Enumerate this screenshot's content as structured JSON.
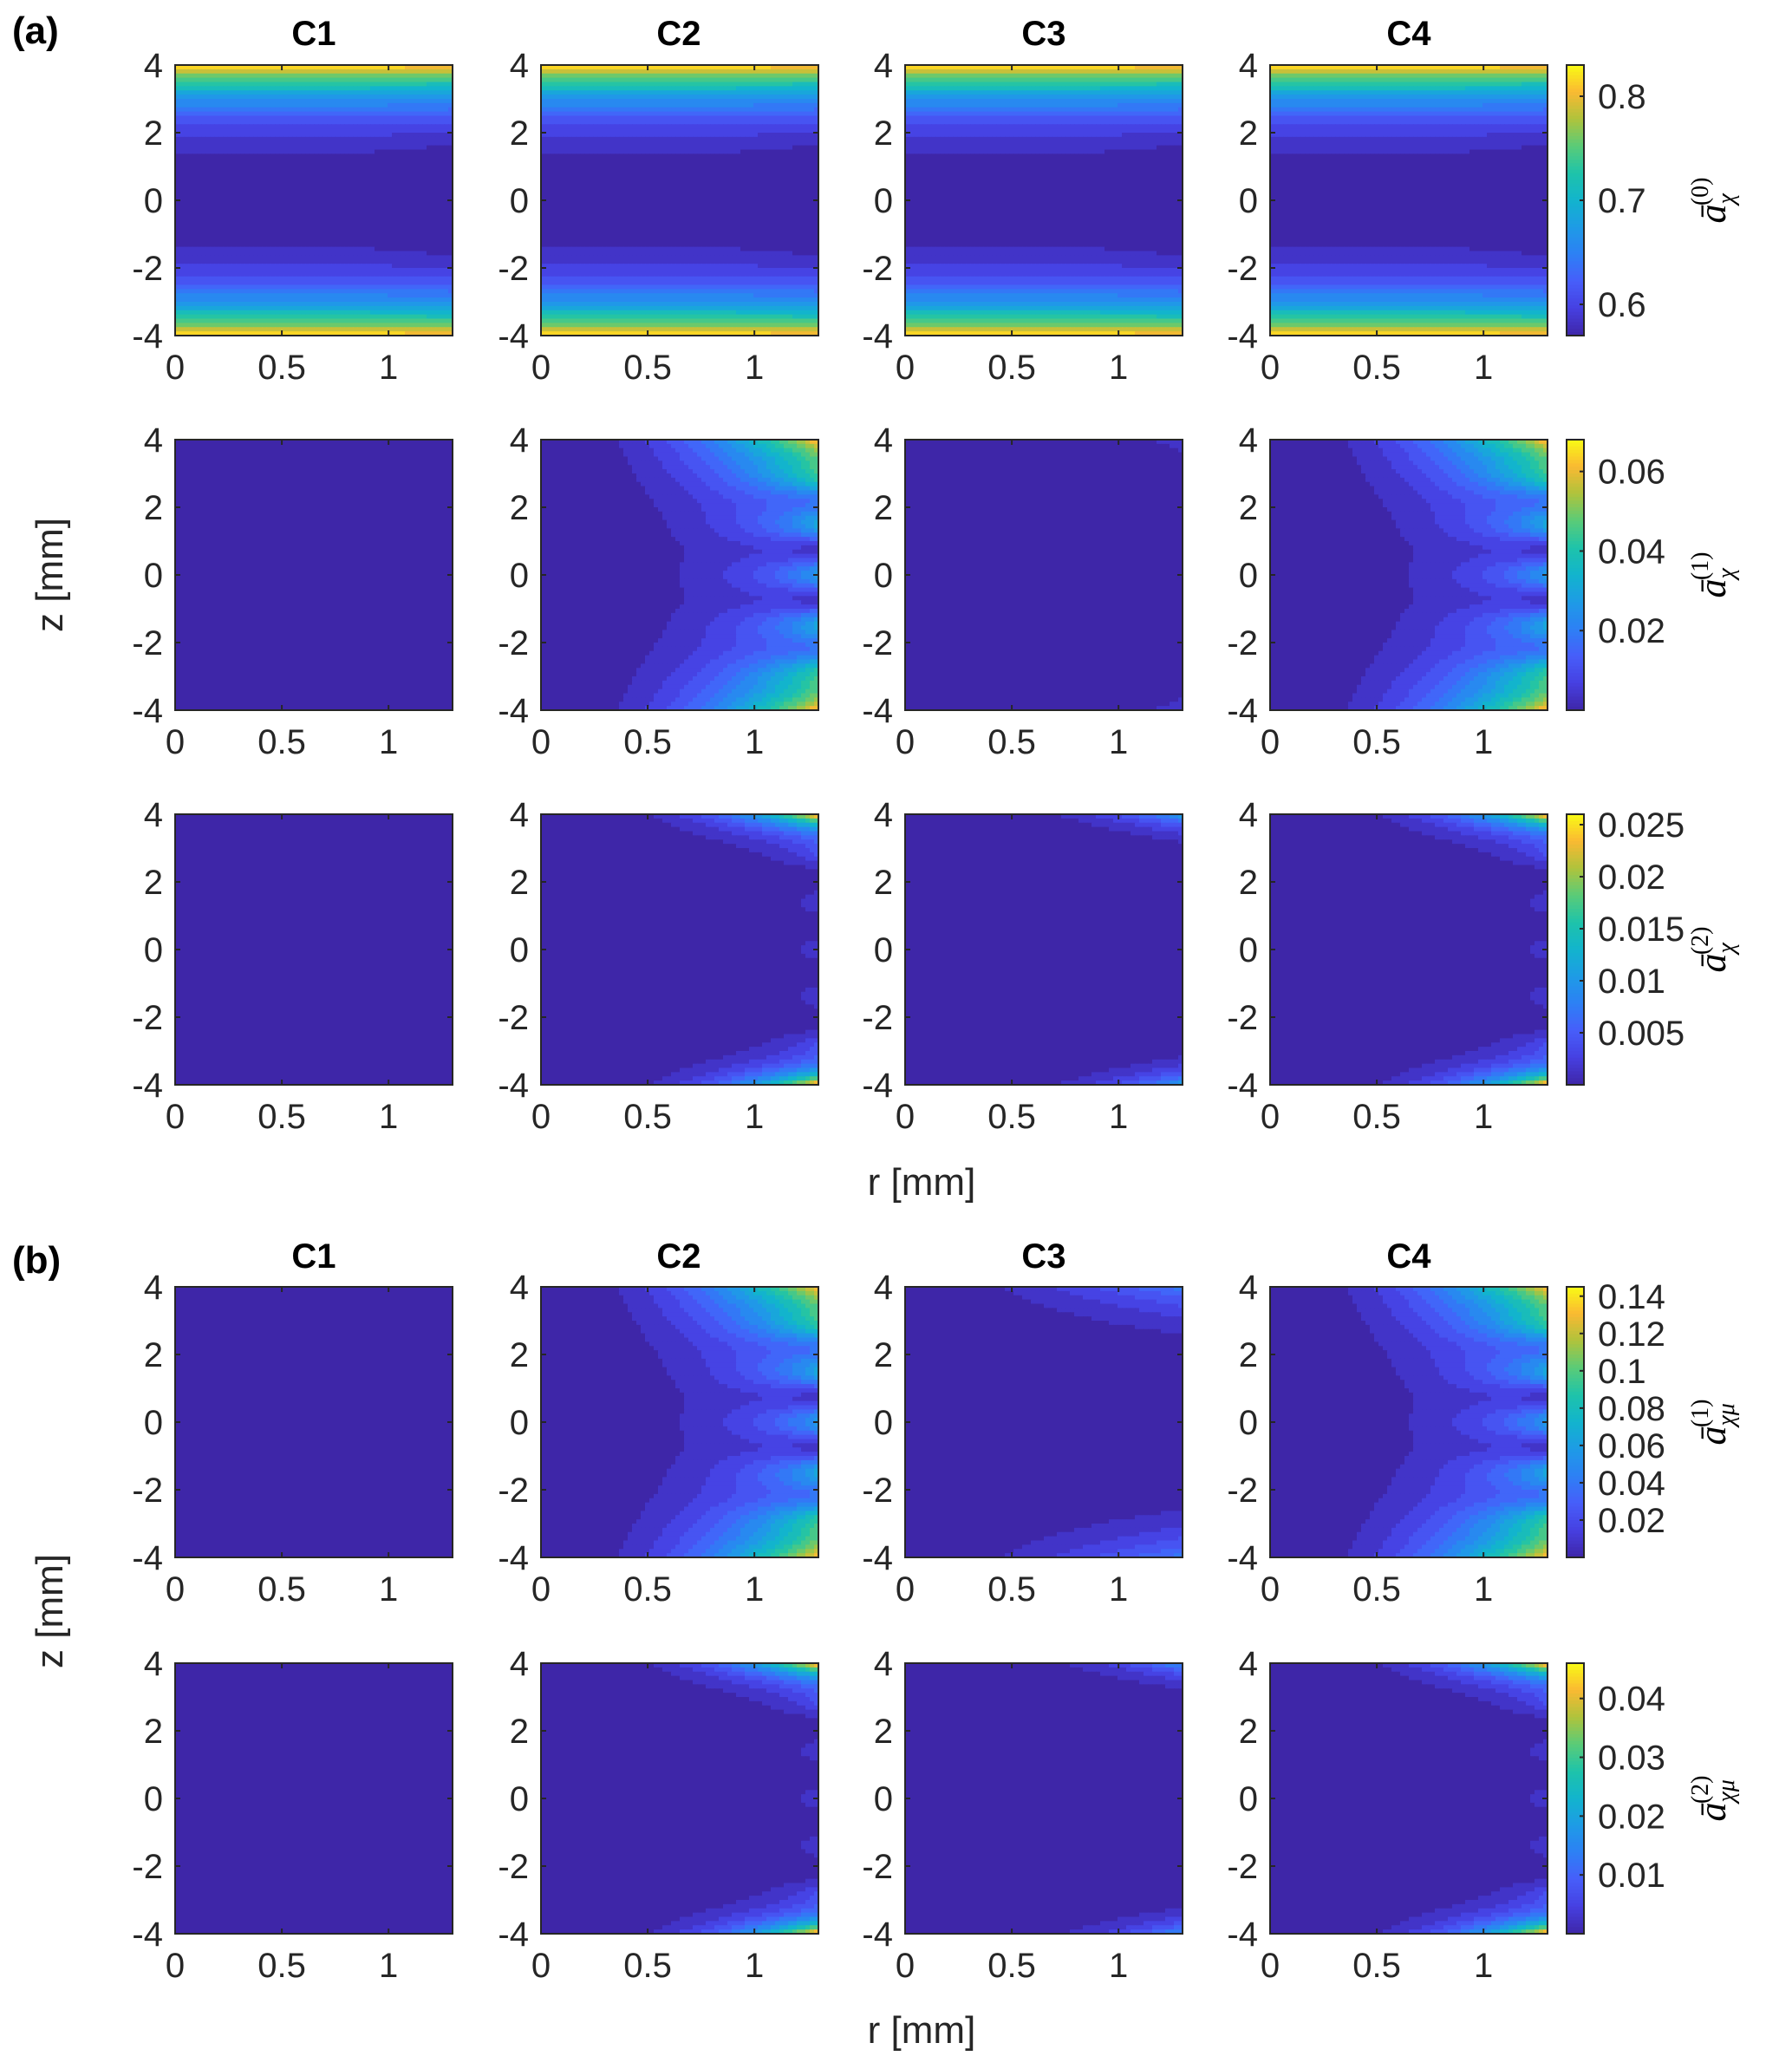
{
  "figure": {
    "section_labels": [
      "(a)",
      "(b)"
    ],
    "column_titles": [
      "C1",
      "C2",
      "C3",
      "C4"
    ],
    "ylabel": "z [mm]",
    "xlabel": "r [mm]",
    "x_tick_labels": [
      "0",
      "0.5",
      "1"
    ],
    "y_tick_labels": [
      "4",
      "2",
      "0",
      "-2",
      "-4"
    ]
  },
  "colors": {
    "parula_low": "#3e26a8",
    "parula_mid": "#12beb9",
    "parula_high": "#f9fb15",
    "axis": "#262626"
  },
  "chart_data": [
    {
      "type": "heatmap",
      "section": "(a)",
      "quantity": "a-bar chi (0)",
      "colorbar_label": {
        "base": "ā",
        "sup": "(0)",
        "sub": "χ"
      },
      "colorbar_ticks": [
        0.6,
        0.7,
        0.8
      ],
      "colorbar_tick_labels": [
        "0.6",
        "0.7",
        "0.8"
      ],
      "clim": [
        0.57,
        0.83
      ],
      "xlim": [
        0,
        1.3
      ],
      "ylim": [
        -4,
        4
      ],
      "panels": [
        {
          "title": "C1",
          "pattern": "edge-bands",
          "max": 0.83
        },
        {
          "title": "C2",
          "pattern": "edge-bands",
          "max": 0.83
        },
        {
          "title": "C3",
          "pattern": "edge-bands",
          "max": 0.83
        },
        {
          "title": "C4",
          "pattern": "edge-bands",
          "max": 0.83
        }
      ]
    },
    {
      "type": "heatmap",
      "section": "(a)",
      "quantity": "a-bar chi (1)",
      "colorbar_label": {
        "base": "ā",
        "sup": "(1)",
        "sub": "χ"
      },
      "colorbar_ticks": [
        0.02,
        0.04,
        0.06
      ],
      "colorbar_tick_labels": [
        "0.02",
        "0.04",
        "0.06"
      ],
      "clim": [
        0.0,
        0.068
      ],
      "xlim": [
        0,
        1.3
      ],
      "ylim": [
        -4,
        4
      ],
      "panels": [
        {
          "title": "C1",
          "pattern": "flat",
          "max": 0.0
        },
        {
          "title": "C2",
          "pattern": "corner-lobes-wide",
          "max": 0.066
        },
        {
          "title": "C3",
          "pattern": "corner-lobes-weak",
          "max": 0.006
        },
        {
          "title": "C4",
          "pattern": "corner-lobes-wide",
          "max": 0.066
        }
      ]
    },
    {
      "type": "heatmap",
      "section": "(a)",
      "quantity": "a-bar chi (2)",
      "colorbar_label": {
        "base": "ā",
        "sup": "(2)",
        "sub": "χ"
      },
      "colorbar_ticks": [
        0.005,
        0.01,
        0.015,
        0.02,
        0.025
      ],
      "colorbar_tick_labels": [
        "0.005",
        "0.01",
        "0.015",
        "0.02",
        "0.025"
      ],
      "clim": [
        0.0,
        0.026
      ],
      "xlim": [
        0,
        1.3
      ],
      "ylim": [
        -4,
        4
      ],
      "panels": [
        {
          "title": "C1",
          "pattern": "flat",
          "max": 0.0
        },
        {
          "title": "C2",
          "pattern": "corner-lobes-narrow",
          "max": 0.025
        },
        {
          "title": "C3",
          "pattern": "corner-lobes-narrow-weak",
          "max": 0.012
        },
        {
          "title": "C4",
          "pattern": "corner-lobes-narrow",
          "max": 0.025
        }
      ]
    },
    {
      "type": "heatmap",
      "section": "(b)",
      "quantity": "a-bar chi mu (1)",
      "colorbar_label": {
        "base": "ā",
        "sup": "(1)",
        "sub": "χμ"
      },
      "colorbar_ticks": [
        0.02,
        0.04,
        0.06,
        0.08,
        0.1,
        0.12,
        0.14
      ],
      "colorbar_tick_labels": [
        "0.02",
        "0.04",
        "0.06",
        "0.08",
        "0.1",
        "0.12",
        "0.14"
      ],
      "clim": [
        0.0,
        0.145
      ],
      "xlim": [
        0,
        1.3
      ],
      "ylim": [
        -4,
        4
      ],
      "panels": [
        {
          "title": "C1",
          "pattern": "flat",
          "max": 0.0
        },
        {
          "title": "C2",
          "pattern": "corner-lobes-wide",
          "max": 0.14
        },
        {
          "title": "C3",
          "pattern": "corner-lobes-broad-weak",
          "max": 0.045
        },
        {
          "title": "C4",
          "pattern": "corner-lobes-wide",
          "max": 0.14
        }
      ]
    },
    {
      "type": "heatmap",
      "section": "(b)",
      "quantity": "a-bar chi mu (2)",
      "colorbar_label": {
        "base": "ā",
        "sup": "(2)",
        "sub": "χμ"
      },
      "colorbar_ticks": [
        0.01,
        0.02,
        0.03,
        0.04
      ],
      "colorbar_tick_labels": [
        "0.01",
        "0.02",
        "0.03",
        "0.04"
      ],
      "clim": [
        0.0,
        0.046
      ],
      "xlim": [
        0,
        1.3
      ],
      "ylim": [
        -4,
        4
      ],
      "panels": [
        {
          "title": "C1",
          "pattern": "flat",
          "max": 0.0
        },
        {
          "title": "C2",
          "pattern": "corner-lobes-narrow",
          "max": 0.044
        },
        {
          "title": "C3",
          "pattern": "corner-lobes-narrow-weak",
          "max": 0.018
        },
        {
          "title": "C4",
          "pattern": "corner-lobes-narrow",
          "max": 0.044
        }
      ]
    }
  ]
}
